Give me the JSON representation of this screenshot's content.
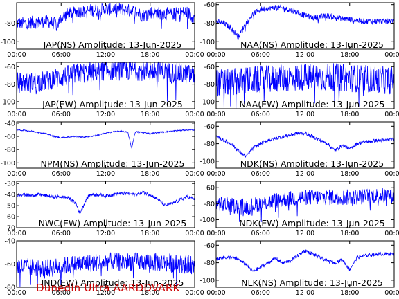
{
  "footer": "Dunedin Ultra AARDDVARK",
  "chart_data": [
    {
      "type": "line",
      "title": "JAP(NS) Amplitude: 13-Jun-2025",
      "ylim": [
        -108,
        -58
      ],
      "yticks": [
        -80,
        -100
      ],
      "ytick_labels": [
        "-80",
        "-100"
      ],
      "xticks": [
        "00:00",
        "06:00",
        "12:00",
        "18:00",
        "00:00"
      ],
      "series": [
        {
          "color": "#0000ff",
          "x": [
            0,
            1,
            2,
            3,
            4,
            5,
            5.5,
            6,
            7,
            8,
            9,
            10,
            11,
            12,
            13,
            14,
            15,
            16,
            17,
            18,
            19,
            20,
            21,
            22,
            23,
            24
          ],
          "values": [
            -80,
            -80,
            -79,
            -79,
            -78,
            -80,
            -82,
            -74,
            -70,
            -68,
            -67,
            -66,
            -66,
            -65,
            -65,
            -65,
            -66,
            -67,
            -72,
            -68,
            -69,
            -70,
            -70,
            -69,
            -68,
            -75
          ],
          "noise": 7
        }
      ]
    },
    {
      "type": "line",
      "title": "NAA(NS) Amplitude: 13-Jun-2025",
      "ylim": [
        -108,
        -58
      ],
      "yticks": [
        -60,
        -80,
        -100
      ],
      "ytick_labels": [
        "-60",
        "-80",
        "-100"
      ],
      "xticks": [
        "00:00",
        "06:00",
        "12:00",
        "18:00",
        "00:00"
      ],
      "series": [
        {
          "color": "#0000ff",
          "x": [
            0,
            1,
            2,
            3,
            4,
            5,
            6,
            7,
            8,
            9,
            10,
            11,
            12,
            13,
            14,
            15,
            16,
            17,
            18,
            19,
            20,
            21,
            22,
            23,
            24
          ],
          "values": [
            -78,
            -80,
            -85,
            -95,
            -80,
            -70,
            -65,
            -64,
            -63,
            -64,
            -66,
            -68,
            -72,
            -74,
            -73,
            -72,
            -74,
            -75,
            -76,
            -77,
            -78,
            -78,
            -78,
            -78,
            -77
          ],
          "noise": 3
        }
      ]
    },
    {
      "type": "line",
      "title": "JAP(EW) Amplitude: 13-Jun-2025",
      "ylim": [
        -108,
        -55
      ],
      "yticks": [
        -60,
        -80,
        -100
      ],
      "ytick_labels": [
        "-60",
        "-80",
        "-100"
      ],
      "xticks": [
        "00:00",
        "06:00",
        "12:00",
        "18:00",
        "00:00"
      ],
      "series": [
        {
          "color": "#0000ff",
          "x": [
            0,
            2,
            4,
            6,
            8,
            10,
            12,
            14,
            16,
            18,
            20,
            22,
            24
          ],
          "values": [
            -78,
            -78,
            -76,
            -72,
            -68,
            -66,
            -64,
            -64,
            -64,
            -65,
            -66,
            -68,
            -70
          ],
          "noise": 12
        }
      ]
    },
    {
      "type": "line",
      "title": "NAA(EW) Amplitude: 13-Jun-2025",
      "ylim": [
        -108,
        -55
      ],
      "yticks": [
        -60,
        -80,
        -100
      ],
      "ytick_labels": [
        "-60",
        "-80",
        "-100"
      ],
      "xticks": [
        "00:00",
        "06:00",
        "12:00",
        "18:00",
        "00:00"
      ],
      "series": [
        {
          "color": "#0000ff",
          "x": [
            0,
            2,
            4,
            6,
            8,
            10,
            12,
            14,
            16,
            18,
            20,
            22,
            24
          ],
          "values": [
            -78,
            -78,
            -76,
            -75,
            -74,
            -73,
            -72,
            -72,
            -72,
            -73,
            -74,
            -75,
            -76
          ],
          "noise": 16
        }
      ]
    },
    {
      "type": "line",
      "title": "NPM(NS) Amplitude: 13-Jun-2025",
      "ylim": [
        -108,
        -38
      ],
      "yticks": [
        -40,
        -60,
        -80,
        -100
      ],
      "ytick_labels": [
        "-40",
        "-60",
        "-80",
        "-100"
      ],
      "xticks": [
        "00:00",
        "06:00",
        "12:00",
        "18:00",
        "00:00"
      ],
      "series": [
        {
          "color": "#0000ff",
          "x": [
            0,
            1,
            2,
            3,
            4,
            5,
            6,
            7,
            8,
            9,
            10,
            11,
            12,
            13,
            14,
            15,
            15.5,
            16,
            17,
            18,
            19,
            20,
            21,
            22,
            23,
            24
          ],
          "values": [
            -50,
            -51,
            -52,
            -54,
            -56,
            -60,
            -62,
            -61,
            -60,
            -61,
            -60,
            -58,
            -55,
            -53,
            -52,
            -54,
            -78,
            -53,
            -54,
            -56,
            -54,
            -53,
            -52,
            -51,
            -50,
            -50
          ],
          "noise": 1
        }
      ]
    },
    {
      "type": "line",
      "title": "NDK(NS) Amplitude: 13-Jun-2025",
      "ylim": [
        -108,
        -55
      ],
      "yticks": [
        -60,
        -80,
        -100
      ],
      "ytick_labels": [
        "-60",
        "-80",
        "-100"
      ],
      "xticks": [
        "00:00",
        "06:00",
        "12:00",
        "18:00",
        "00:00"
      ],
      "series": [
        {
          "color": "#0000ff",
          "x": [
            0,
            1,
            2,
            3,
            4,
            5,
            6,
            7,
            8,
            9,
            10,
            11,
            12,
            13,
            14,
            15,
            16,
            17,
            18,
            19,
            20,
            21,
            22,
            23,
            24
          ],
          "values": [
            -72,
            -76,
            -80,
            -88,
            -95,
            -85,
            -80,
            -76,
            -74,
            -72,
            -70,
            -68,
            -68,
            -72,
            -76,
            -80,
            -88,
            -82,
            -86,
            -80,
            -78,
            -77,
            -76,
            -76,
            -75
          ],
          "noise": 2
        }
      ]
    },
    {
      "type": "line",
      "title": "NWC(EW) Amplitude: 13-Jun-2025",
      "ylim": [
        -70,
        -28
      ],
      "yticks": [
        -30,
        -40,
        -50,
        -60,
        -70
      ],
      "ytick_labels": [
        "-30",
        "-40",
        "-50",
        "-60",
        "-70"
      ],
      "xticks": [
        "00:00",
        "06:00",
        "12:00",
        "18:00",
        "00:00"
      ],
      "series": [
        {
          "color": "#0000ff",
          "x": [
            0,
            1,
            2,
            3,
            4,
            5,
            6,
            7,
            8,
            8.5,
            9,
            9.5,
            10,
            11,
            12,
            13,
            14,
            15,
            16,
            17,
            18,
            19,
            20,
            21,
            22,
            23,
            24
          ],
          "values": [
            -40,
            -40,
            -41,
            -40,
            -41,
            -42,
            -42,
            -43,
            -48,
            -57,
            -50,
            -43,
            -40,
            -40,
            -41,
            -40,
            -39,
            -39,
            -40,
            -38,
            -40,
            -44,
            -50,
            -48,
            -45,
            -42,
            -44
          ],
          "noise": 1.5
        }
      ]
    },
    {
      "type": "line",
      "title": "NDK(EW) Amplitude: 13-Jun-2025",
      "ylim": [
        -110,
        -52
      ],
      "yticks": [
        -60,
        -80,
        -100
      ],
      "ytick_labels": [
        "-60",
        "-80",
        "-100"
      ],
      "xticks": [
        "00:00",
        "06:00",
        "12:00",
        "18:00",
        "00:00"
      ],
      "series": [
        {
          "color": "#0000ff",
          "x": [
            0,
            2,
            4,
            6,
            8,
            10,
            12,
            14,
            16,
            18,
            20,
            22,
            24
          ],
          "values": [
            -80,
            -82,
            -84,
            -80,
            -76,
            -74,
            -72,
            -72,
            -72,
            -72,
            -71,
            -70,
            -70
          ],
          "noise": 10
        }
      ]
    },
    {
      "type": "line",
      "title": "IND(EW) Amplitude: 13-Jun-2025",
      "ylim": [
        -80,
        -40
      ],
      "yticks": [
        -40,
        -60,
        -80
      ],
      "ytick_labels": [
        "-40",
        "-60",
        "-80"
      ],
      "xticks": [
        "00:00",
        "06:00",
        "12:00",
        "18:00",
        "00:00"
      ],
      "series": [
        {
          "color": "#0000ff",
          "x": [
            0,
            2,
            4,
            6,
            8,
            10,
            12,
            14,
            16,
            18,
            20,
            22,
            24
          ],
          "values": [
            -62,
            -63,
            -64,
            -62,
            -60,
            -59,
            -58,
            -58,
            -58,
            -58,
            -59,
            -60,
            -61
          ],
          "noise": 8
        }
      ]
    },
    {
      "type": "line",
      "title": "NLK(NS) Amplitude: 13-Jun-2025",
      "ylim": [
        -108,
        -55
      ],
      "yticks": [
        -60,
        -80,
        -100
      ],
      "ytick_labels": [
        "-60",
        "-80",
        "-100"
      ],
      "xticks": [
        "00:00",
        "06:00",
        "12:00",
        "18:00",
        "00:00"
      ],
      "series": [
        {
          "color": "#0000ff",
          "x": [
            0,
            1,
            2,
            3,
            4,
            5,
            6,
            7,
            8,
            9,
            10,
            11,
            12,
            13,
            14,
            15,
            16,
            17,
            18,
            19,
            20,
            21,
            22,
            23,
            24
          ],
          "values": [
            -76,
            -74,
            -74,
            -76,
            -82,
            -90,
            -85,
            -80,
            -75,
            -80,
            -78,
            -72,
            -66,
            -70,
            -74,
            -78,
            -80,
            -76,
            -88,
            -74,
            -72,
            -71,
            -70,
            -70,
            -70
          ],
          "noise": 2
        }
      ]
    }
  ]
}
